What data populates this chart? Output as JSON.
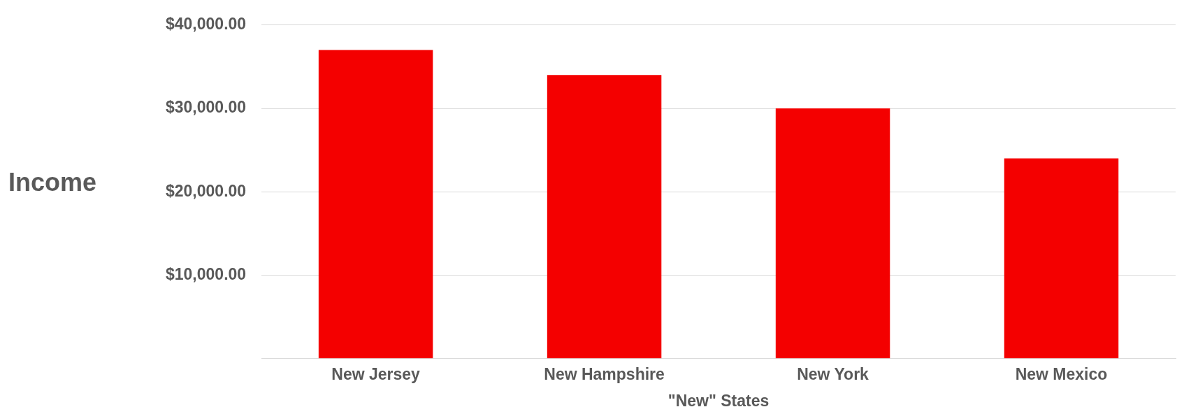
{
  "chart_data": {
    "type": "bar",
    "xlabel": "\"New\" States",
    "ylabel": "Income",
    "categories": [
      "New Jersey",
      "New Hampshire",
      "New York",
      "New Mexico"
    ],
    "values": [
      37000,
      34000,
      30000,
      24000
    ],
    "color": "#f40000",
    "ylim": [
      0,
      40000
    ],
    "yticks": [
      {
        "value": 0,
        "label": null
      },
      {
        "value": 10000,
        "label": "$10,000.00"
      },
      {
        "value": 20000,
        "label": "$20,000.00"
      },
      {
        "value": 30000,
        "label": "$30,000.00"
      },
      {
        "value": 40000,
        "label": "$40,000.00"
      }
    ],
    "grid": "y"
  }
}
